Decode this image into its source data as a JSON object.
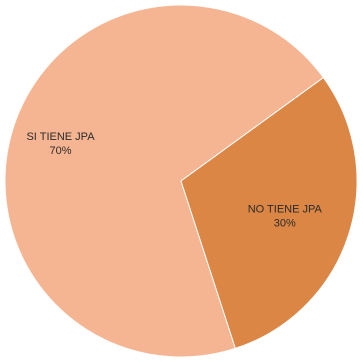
{
  "chart_data": {
    "type": "pie",
    "title": "",
    "categories": [
      "SI TIENE JPA",
      "NO TIENE JPA"
    ],
    "values": [
      70,
      30
    ],
    "value_labels": [
      "70%",
      "30%"
    ],
    "colors": [
      "#F6B592",
      "#DB8644"
    ],
    "start_angle_deg": 36,
    "direction": "counterclockwise",
    "legend": "none"
  }
}
